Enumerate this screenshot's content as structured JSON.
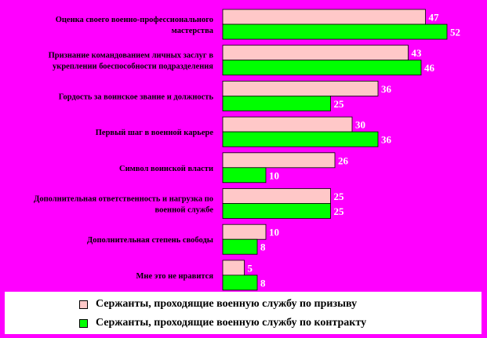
{
  "colors": {
    "background": "#FF00FF",
    "series_conscription": "#FFC8C8",
    "series_contract": "#00FF00",
    "value_labels": "#FFFFFF"
  },
  "chart_data": {
    "type": "bar",
    "orientation": "horizontal",
    "categories": [
      "Оценка своего военно-профессионального мастерства",
      "Признание командованием личных заслуг в укреплении боеспособности подразделения",
      "Гордость за воинское звание и должность",
      "Первый шаг в военной карьере",
      "Символ воинской власти",
      "Дополнительная ответственность и нагрузка по военной службе",
      "Дополнительная степень свободы",
      "Мне это не нравится"
    ],
    "category_lines": [
      [
        "Оценка своего военно-профессионального",
        "мастерства"
      ],
      [
        "Признание командованием личных заслуг в",
        "укреплении боеспособности подразделения"
      ],
      [
        "Гордость за воинское звание и должность"
      ],
      [
        "Первый шаг в военной карьере"
      ],
      [
        "Символ воинской власти"
      ],
      [
        "Дополнительная ответственность и нагрузка по",
        "военной службе"
      ],
      [
        "Дополнительная степень свободы"
      ],
      [
        "Мне это не нравится"
      ]
    ],
    "series": [
      {
        "name": "Сержанты, проходящие военную службу по призыву",
        "values": [
          47,
          43,
          36,
          30,
          26,
          25,
          10,
          5
        ]
      },
      {
        "name": "Сержанты, проходящие военную службу по контракту",
        "values": [
          52,
          46,
          25,
          36,
          10,
          25,
          8,
          8
        ]
      }
    ],
    "xlim": [
      0,
      60
    ],
    "grid": false,
    "legend_position": "bottom"
  },
  "legend": {
    "items": [
      "Сержанты, проходящие военную службу по призыву",
      "Сержанты, проходящие военную службу по контракту"
    ]
  }
}
